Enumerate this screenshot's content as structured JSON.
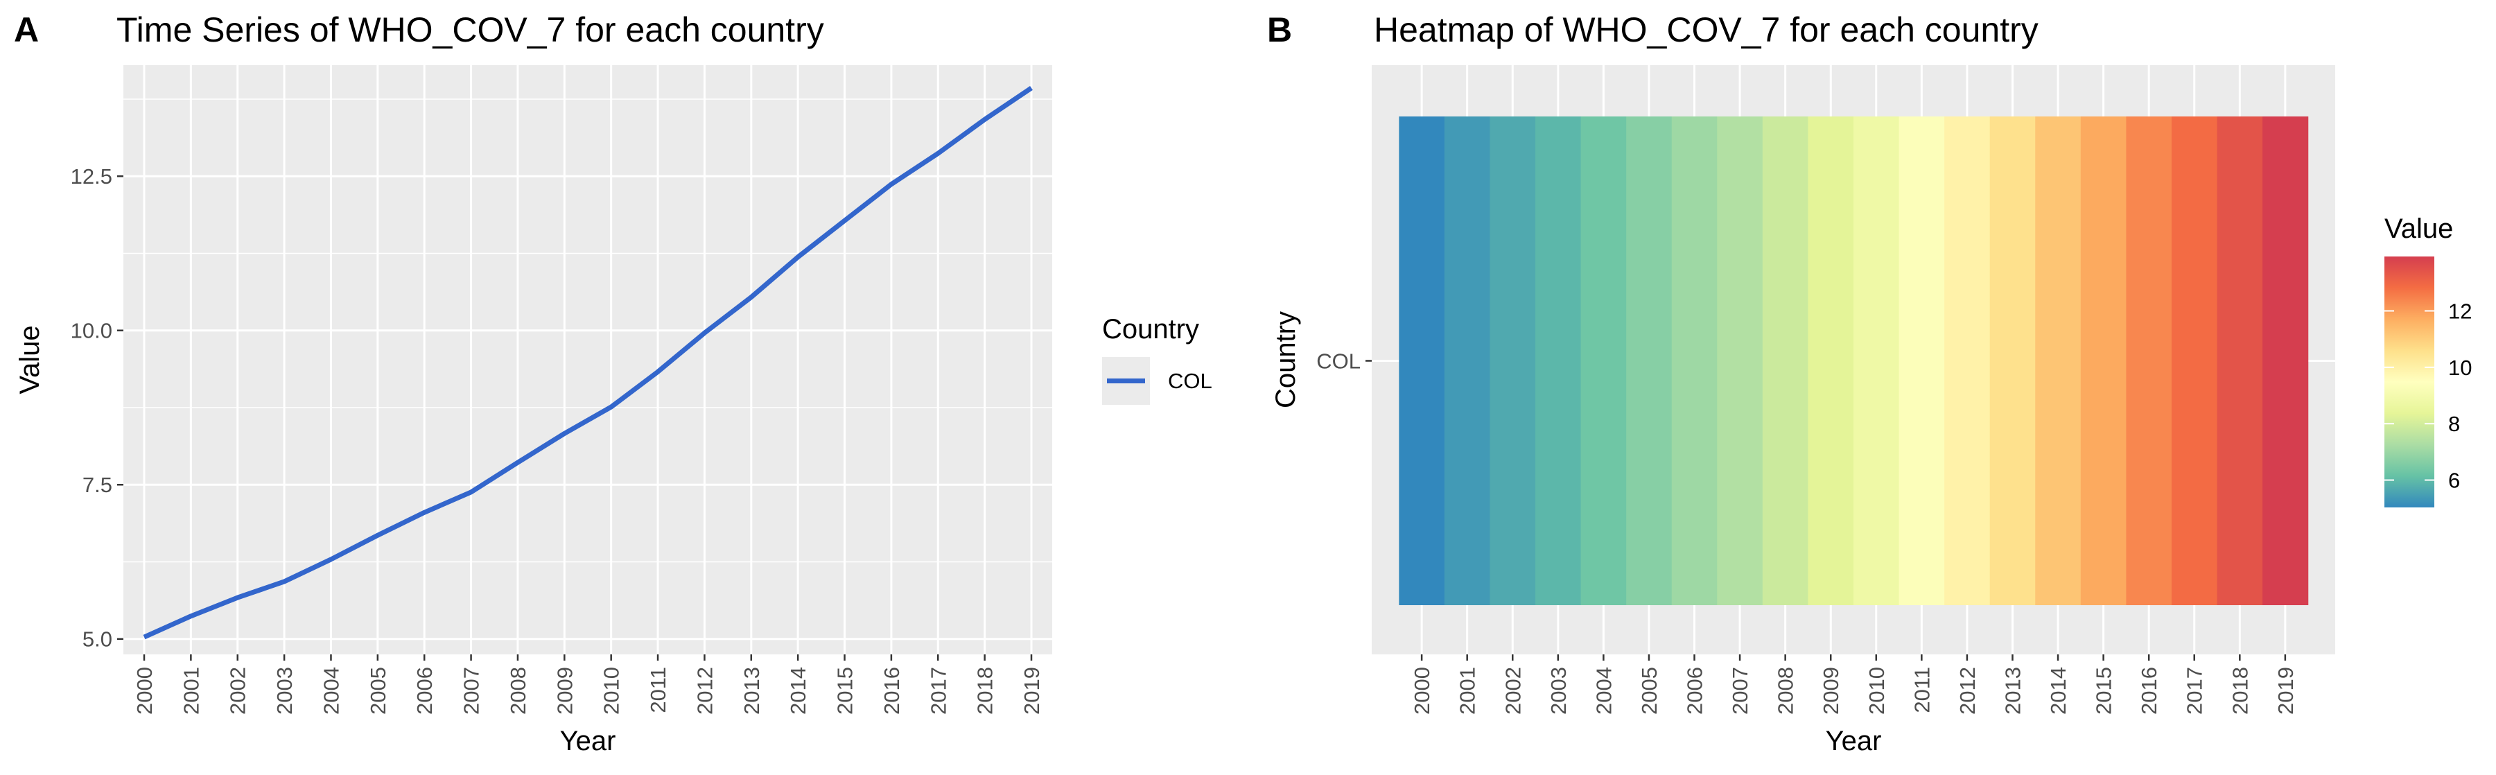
{
  "chart_data": [
    {
      "type": "line",
      "panel_label": "A",
      "title": "Time Series of WHO_COV_7 for each country",
      "xlabel": "Year",
      "ylabel": "Value",
      "ylim": [
        4.75,
        14.3
      ],
      "y_ticks": [
        5.0,
        7.5,
        10.0,
        12.5
      ],
      "y_tick_labels": [
        "5.0",
        "7.5",
        "10.0",
        "12.5"
      ],
      "grid": true,
      "legend": {
        "title": "Country",
        "placement": "right",
        "entries": [
          {
            "label": "COL",
            "color": "#3366CC"
          }
        ]
      },
      "x": [
        "2000",
        "2001",
        "2002",
        "2003",
        "2004",
        "2005",
        "2006",
        "2007",
        "2008",
        "2009",
        "2010",
        "2011",
        "2012",
        "2013",
        "2014",
        "2015",
        "2016",
        "2017",
        "2018",
        "2019"
      ],
      "series": [
        {
          "name": "COL",
          "color": "#3366CC",
          "values": [
            5.03,
            5.37,
            5.67,
            5.93,
            6.29,
            6.68,
            7.05,
            7.38,
            7.86,
            8.33,
            8.76,
            9.33,
            9.96,
            10.54,
            11.19,
            11.78,
            12.37,
            12.87,
            13.42,
            13.93
          ]
        }
      ]
    },
    {
      "type": "heatmap",
      "panel_label": "B",
      "title": "Heatmap of WHO_COV_7 for each country",
      "xlabel": "Year",
      "ylabel": "Country",
      "rows": [
        "COL"
      ],
      "x": [
        "2000",
        "2001",
        "2002",
        "2003",
        "2004",
        "2005",
        "2006",
        "2007",
        "2008",
        "2009",
        "2010",
        "2011",
        "2012",
        "2013",
        "2014",
        "2015",
        "2016",
        "2017",
        "2018",
        "2019"
      ],
      "values": [
        [
          5.03,
          5.37,
          5.67,
          5.93,
          6.29,
          6.68,
          7.05,
          7.38,
          7.86,
          8.33,
          8.76,
          9.33,
          9.96,
          10.54,
          11.19,
          11.78,
          12.37,
          12.87,
          13.42,
          13.93
        ]
      ],
      "color_scale": {
        "name": "Spectral (reversed)",
        "range": [
          5.03,
          13.93
        ],
        "stops": [
          "#3288BD",
          "#66C2A5",
          "#ABDDA4",
          "#E6F598",
          "#FFFFBF",
          "#FEE08B",
          "#FDAE61",
          "#F46D43",
          "#D53E4F"
        ]
      },
      "legend": {
        "title": "Value",
        "placement": "right",
        "ticks": [
          6,
          8,
          10,
          12
        ],
        "tick_labels": [
          "6",
          "8",
          "10",
          "12"
        ]
      },
      "grid": true
    }
  ]
}
